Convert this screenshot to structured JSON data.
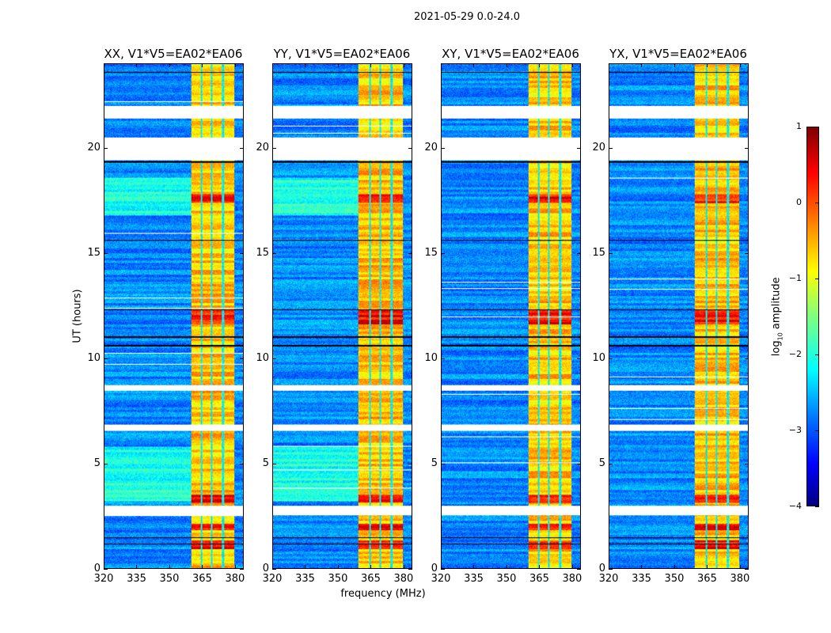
{
  "chart_data": {
    "type": "heatmap",
    "title": "2021-05-29 0.0-24.0",
    "xlabel": "frequency (MHz)",
    "ylabel": "UT (hours)",
    "xlim": [
      320,
      384
    ],
    "ylim": [
      0,
      24
    ],
    "xticks": [
      320,
      335,
      350,
      365,
      380
    ],
    "yticks": [
      0,
      5,
      10,
      15,
      20
    ],
    "panels": [
      {
        "title": "XX, V1*V5=EA02*EA06",
        "pol": "XX"
      },
      {
        "title": "YY, V1*V5=EA02*EA06",
        "pol": "YY"
      },
      {
        "title": "XY, V1*V5=EA02*EA06",
        "pol": "XY"
      },
      {
        "title": "YX, V1*V5=EA02*EA06",
        "pol": "YX"
      }
    ],
    "colorbar": {
      "label_prefix": "log",
      "label_sub": "10",
      "label_suffix": " amplitude",
      "range": [
        -4,
        1
      ],
      "ticks": [
        1,
        0,
        -1,
        -2,
        -3,
        -4
      ],
      "colormap": "jet"
    },
    "features": {
      "background_level": -2.7,
      "rfi_band_mhz": [
        360,
        380
      ],
      "rfi_band_level": -0.6,
      "band_notches_mhz": [
        364.8,
        369.5,
        374.9
      ],
      "strong_intervals_ut": [
        [
          11.6,
          12.3
        ],
        [
          0.9,
          1.3
        ],
        [
          1.8,
          2.1
        ],
        [
          3.1,
          3.5
        ],
        [
          17.4,
          17.8
        ]
      ],
      "data_gaps_ut": [
        [
          21.4,
          22.0
        ],
        [
          19.4,
          20.5
        ],
        [
          8.45,
          8.7
        ],
        [
          6.53,
          6.83
        ],
        [
          2.5,
          2.96
        ]
      ],
      "flagged_lines_ut": [
        23.6,
        19.35,
        15.6,
        12.3,
        11.0,
        10.6,
        1.45,
        1.15
      ]
    }
  }
}
